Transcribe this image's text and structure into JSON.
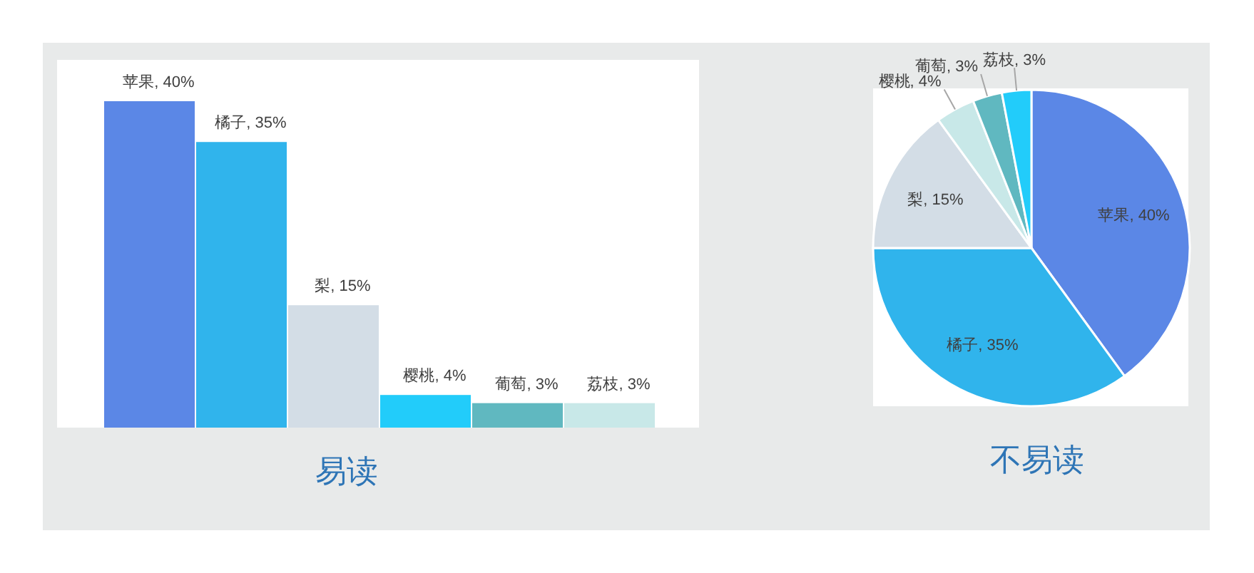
{
  "chart_data": [
    {
      "type": "bar",
      "title": "易读",
      "categories": [
        "苹果",
        "橘子",
        "梨",
        "樱桃",
        "葡萄",
        "荔枝"
      ],
      "values": [
        40,
        35,
        15,
        4,
        3,
        3
      ],
      "colors": [
        "#5b87e6",
        "#30b4ec",
        "#d3dde6",
        "#22ccfa",
        "#60b8c0",
        "#c8e8e8"
      ],
      "value_labels": [
        ", 40%",
        ", 35%",
        ", 15%",
        ", 4%",
        ", 3%",
        ", 3%"
      ]
    },
    {
      "type": "pie",
      "title": "不易读",
      "categories": [
        "苹果",
        "橘子",
        "梨",
        "樱桃",
        "葡萄",
        "荔枝"
      ],
      "values": [
        40,
        35,
        15,
        4,
        3,
        3
      ],
      "colors": [
        "#5b87e6",
        "#30b4ec",
        "#d3dde6",
        "#c8e8e8",
        "#60b8c0",
        "#22ccfa"
      ],
      "value_labels": [
        ", 40%",
        ", 35%",
        ", 15%",
        ", 4%",
        ", 3%",
        ", 3%"
      ]
    }
  ]
}
